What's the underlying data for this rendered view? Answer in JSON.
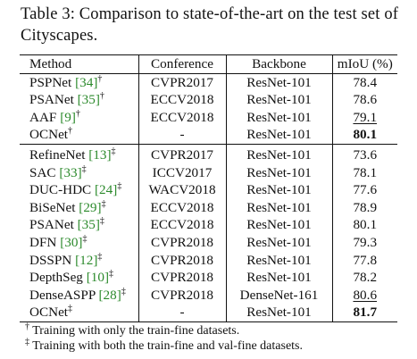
{
  "caption": "Table 3: Comparison to state-of-the-art on the test set of Cityscapes.",
  "headers": [
    "Method",
    "Conference",
    "Backbone",
    "mIoU (%)"
  ],
  "group1": [
    {
      "name": "PSPNet",
      "ref": "[34]",
      "mark": "†",
      "conference": "CVPR2017",
      "backbone": "ResNet-101",
      "miou": "78.4",
      "style": "normal"
    },
    {
      "name": "PSANet",
      "ref": "[35]",
      "mark": "†",
      "conference": "ECCV2018",
      "backbone": "ResNet-101",
      "miou": "78.6",
      "style": "normal"
    },
    {
      "name": "AAF",
      "ref": "[9]",
      "mark": "†",
      "conference": "ECCV2018",
      "backbone": "ResNet-101",
      "miou": "79.1",
      "style": "underline"
    },
    {
      "name": "OCNet",
      "ref": "",
      "mark": "†",
      "conference": "-",
      "backbone": "ResNet-101",
      "miou": "80.1",
      "style": "bold"
    }
  ],
  "group2": [
    {
      "name": "RefineNet",
      "ref": "[13]",
      "mark": "‡",
      "conference": "CVPR2017",
      "backbone": "ResNet-101",
      "miou": "73.6",
      "style": "normal"
    },
    {
      "name": "SAC",
      "ref": "[33]",
      "mark": "‡",
      "conference": "ICCV2017",
      "backbone": "ResNet-101",
      "miou": "78.1",
      "style": "normal"
    },
    {
      "name": "DUC-HDC",
      "ref": "[24]",
      "mark": "‡",
      "conference": "WACV2018",
      "backbone": "ResNet-101",
      "miou": "77.6",
      "style": "normal"
    },
    {
      "name": "BiSeNet",
      "ref": "[29]",
      "mark": "‡",
      "conference": "ECCV2018",
      "backbone": "ResNet-101",
      "miou": "78.9",
      "style": "normal"
    },
    {
      "name": "PSANet",
      "ref": "[35]",
      "mark": "‡",
      "conference": "ECCV2018",
      "backbone": "ResNet-101",
      "miou": "80.1",
      "style": "normal"
    },
    {
      "name": "DFN",
      "ref": "[30]",
      "mark": "‡",
      "conference": "CVPR2018",
      "backbone": "ResNet-101",
      "miou": "79.3",
      "style": "normal"
    },
    {
      "name": "DSSPN",
      "ref": "[12]",
      "mark": "‡",
      "conference": "CVPR2018",
      "backbone": "ResNet-101",
      "miou": "77.8",
      "style": "normal"
    },
    {
      "name": "DepthSeg",
      "ref": "[10]",
      "mark": "‡",
      "conference": "CVPR2018",
      "backbone": "ResNet-101",
      "miou": "78.2",
      "style": "normal"
    },
    {
      "name": "DenseASPP",
      "ref": "[28]",
      "mark": "‡",
      "conference": "CVPR2018",
      "backbone": "DenseNet-161",
      "miou": "80.6",
      "style": "underline"
    },
    {
      "name": "OCNet",
      "ref": "",
      "mark": "‡",
      "conference": "-",
      "backbone": "ResNet-101",
      "miou": "81.7",
      "style": "bold"
    }
  ],
  "notes": [
    {
      "mark": "†",
      "text": "Training with only the train-fine datasets."
    },
    {
      "mark": "‡",
      "text": "Training with both the train-fine and val-fine datasets."
    }
  ],
  "colors": {
    "ref_link": "#2c8a2c",
    "text": "#111111"
  }
}
